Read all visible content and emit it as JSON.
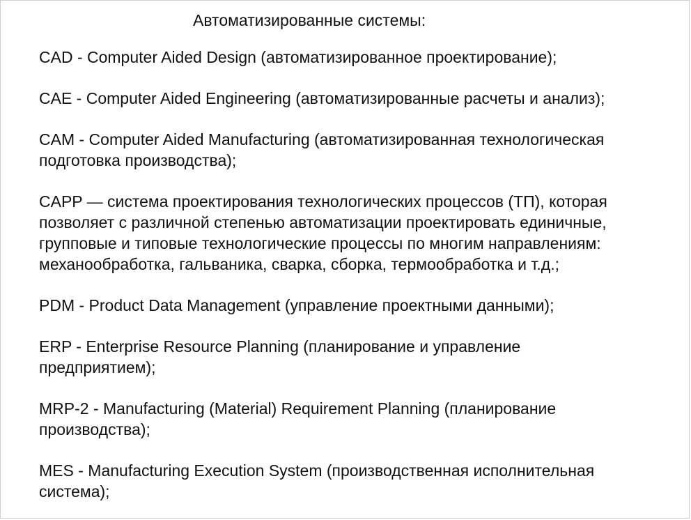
{
  "title": "Автоматизированные системы:",
  "items": [
    "CAD - Computer Aided Design (автоматизированное проектирование);",
    "CAE - Computer Aided Engineering (автоматизированные расчеты и анализ);",
    "CAM - Computer Aided Manufacturing (автоматизированная технологическая\nподготовка производства);",
    "CAPP — система проектирования технологических процессов (ТП), которая\nпозволяет с различной степенью автоматизации проектировать единичные,\nгрупповые и типовые технологические процессы по многим направлениям:\nмеханообработка, гальваника, сварка, сборка, термообработка и т.д.;",
    "PDM - Product Data Management (управление проектными данными);",
    "ERP - Enterprise Resource Planning (планирование и управление\nпредприятием);",
    "MRP-2 - Manufacturing (Material) Requirement Planning (планирование\nпроизводства);",
    "MES - Manufacturing Execution System (производственная исполнительная\nсистема);"
  ]
}
